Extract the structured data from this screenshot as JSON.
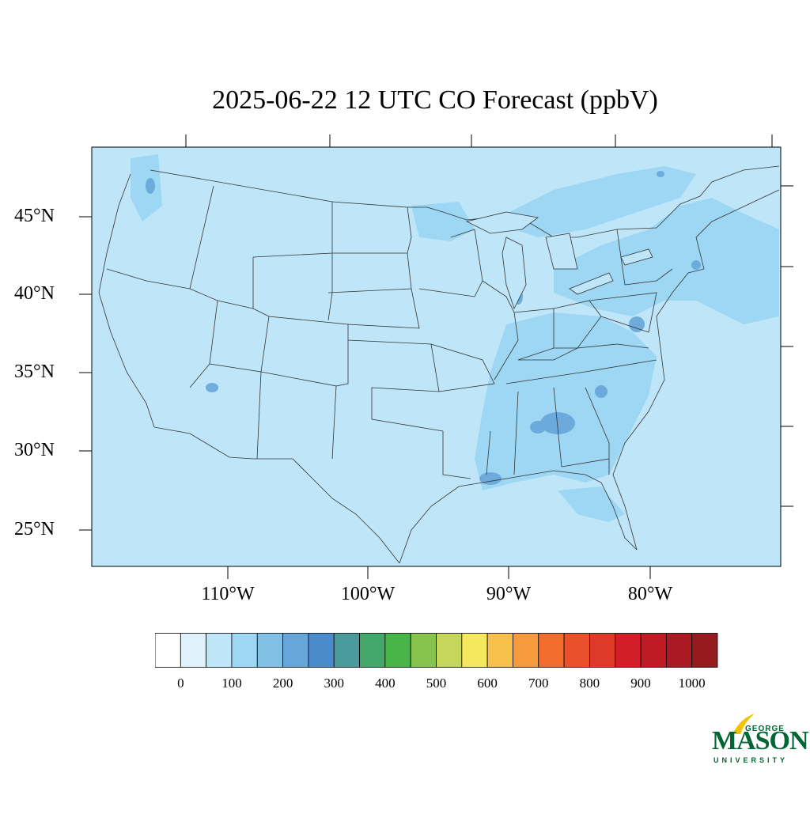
{
  "title": "2025-06-22 12 UTC CO Forecast (ppbV)",
  "latitude_labels": [
    "45°N",
    "40°N",
    "35°N",
    "30°N",
    "25°N"
  ],
  "longitude_labels": [
    "110°W",
    "100°W",
    "90°W",
    "80°W"
  ],
  "colorbar": {
    "labels": [
      "0",
      "100",
      "200",
      "300",
      "400",
      "500",
      "600",
      "700",
      "800",
      "900",
      "1000"
    ],
    "colors": [
      "#ffffff",
      "#dff1fb",
      "#bee6f8",
      "#9dd7f4",
      "#82c0e6",
      "#67a6d9",
      "#4a8ccb",
      "#4b9b9d",
      "#44a86d",
      "#48b549",
      "#86c44d",
      "#c5d75a",
      "#f5e85c",
      "#f6c04a",
      "#f69a3d",
      "#f26d2d",
      "#e9502c",
      "#de3a2a",
      "#d21f27",
      "#bf1b25",
      "#ab1a22",
      "#951b1f"
    ]
  },
  "map": {
    "background_color": "#bee6f8",
    "enhanced_color": "#9dd7f4",
    "hotspot_color": "#67a6d9"
  },
  "logo": {
    "top": "GEORGE",
    "main": "MASON",
    "bottom": "UNIVERSITY"
  }
}
